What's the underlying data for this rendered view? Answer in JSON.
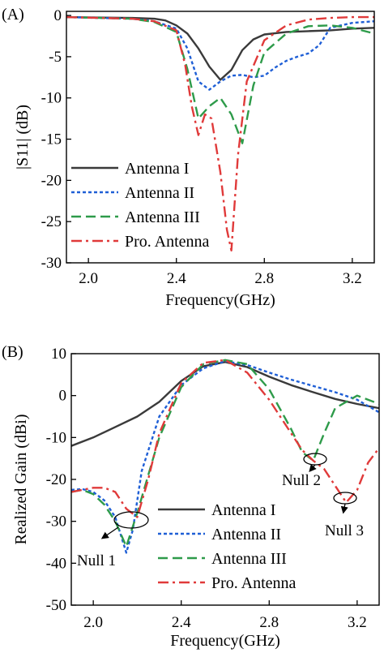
{
  "chart_data": [
    {
      "panel_label": "(A)",
      "type": "line",
      "xlabel": "Frequency(GHz)",
      "ylabel": "|S11| (dB)",
      "xlim": [
        1.9,
        3.3
      ],
      "ylim": [
        -30,
        0.5
      ],
      "xticks": [
        2.0,
        2.4,
        2.8,
        3.2
      ],
      "xtick_labels": [
        "2.0",
        "2.4",
        "2.8",
        "3.2"
      ],
      "yticks": [
        0,
        -5,
        -10,
        -15,
        -20,
        -25,
        -30
      ],
      "ytick_labels": [
        "0",
        "-5",
        "-10",
        "-15",
        "-20",
        "-25",
        "-30"
      ],
      "grid": false,
      "legend_position": "bottom-left",
      "series": [
        {
          "name": "Antenna I",
          "color": "#3a3a3a",
          "dash": "solid",
          "x": [
            1.9,
            2.2,
            2.3,
            2.35,
            2.4,
            2.45,
            2.5,
            2.55,
            2.6,
            2.65,
            2.7,
            2.75,
            2.8,
            2.9,
            3.0,
            3.1,
            3.2,
            3.3
          ],
          "y": [
            -0.2,
            -0.3,
            -0.4,
            -0.6,
            -1.2,
            -2.2,
            -4.0,
            -6.2,
            -7.8,
            -6.6,
            -4.2,
            -2.9,
            -2.3,
            -2.0,
            -1.9,
            -1.8,
            -1.6,
            -1.5
          ]
        },
        {
          "name": "Antenna II",
          "color": "#1f5fd6",
          "dash": "dotted",
          "x": [
            1.9,
            2.2,
            2.3,
            2.4,
            2.45,
            2.5,
            2.55,
            2.6,
            2.65,
            2.7,
            2.75,
            2.8,
            2.85,
            2.9,
            2.95,
            3.0,
            3.05,
            3.1,
            3.2,
            3.3
          ],
          "y": [
            -0.2,
            -0.4,
            -0.7,
            -1.6,
            -4.0,
            -8.0,
            -9.0,
            -8.0,
            -7.3,
            -7.2,
            -7.5,
            -7.3,
            -6.3,
            -5.5,
            -5.0,
            -4.6,
            -3.6,
            -1.5,
            -0.9,
            -0.7
          ]
        },
        {
          "name": "Antenna III",
          "color": "#2e9b4a",
          "dash": "dashed",
          "x": [
            1.9,
            2.2,
            2.3,
            2.4,
            2.45,
            2.5,
            2.55,
            2.6,
            2.65,
            2.7,
            2.75,
            2.8,
            2.9,
            3.0,
            3.1,
            3.2,
            3.3
          ],
          "y": [
            -0.2,
            -0.4,
            -0.8,
            -2.0,
            -6.5,
            -12.5,
            -11.0,
            -10.0,
            -12.0,
            -15.5,
            -8.5,
            -4.5,
            -2.2,
            -1.3,
            -1.2,
            -1.5,
            -2.2
          ]
        },
        {
          "name": "Pro. Antenna",
          "color": "#e03a3a",
          "dash": "dashdot",
          "x": [
            1.9,
            2.2,
            2.3,
            2.4,
            2.44,
            2.47,
            2.5,
            2.53,
            2.56,
            2.6,
            2.63,
            2.65,
            2.68,
            2.72,
            2.8,
            2.9,
            3.0,
            3.1,
            3.2,
            3.3
          ],
          "y": [
            -0.2,
            -0.4,
            -0.7,
            -1.8,
            -6.0,
            -11.0,
            -14.5,
            -12.0,
            -12.5,
            -19.0,
            -26.0,
            -28.5,
            -17.0,
            -8.0,
            -3.0,
            -1.2,
            -0.5,
            -0.3,
            -0.2,
            -0.2
          ]
        }
      ]
    },
    {
      "panel_label": "(B)",
      "type": "line",
      "xlabel": "Frequency(GHz)",
      "ylabel": "Realized Gain (dBi)",
      "xlim": [
        1.9,
        3.3
      ],
      "ylim": [
        -50,
        10
      ],
      "xticks": [
        2.0,
        2.4,
        2.8,
        3.2
      ],
      "xtick_labels": [
        "2.0",
        "2.4",
        "2.8",
        "3.2"
      ],
      "yticks": [
        10,
        0,
        -10,
        -20,
        -30,
        -40,
        -50
      ],
      "ytick_labels": [
        "10",
        "0",
        "-10",
        "-20",
        "-30",
        "-40",
        "-50"
      ],
      "grid": false,
      "legend_position": "bottom-right",
      "annotations": [
        "Null 1",
        "Null 2",
        "Null 3"
      ],
      "series": [
        {
          "name": "Antenna I",
          "color": "#3a3a3a",
          "dash": "solid",
          "x": [
            1.9,
            2.0,
            2.1,
            2.2,
            2.3,
            2.4,
            2.5,
            2.6,
            2.7,
            2.8,
            2.9,
            3.0,
            3.1,
            3.2,
            3.3
          ],
          "y": [
            -12.0,
            -10.0,
            -7.5,
            -5.0,
            -1.5,
            3.5,
            7.0,
            8.0,
            6.8,
            4.5,
            2.5,
            0.8,
            -0.8,
            -2.0,
            -3.0
          ]
        },
        {
          "name": "Antenna II",
          "color": "#1f5fd6",
          "dash": "dotted",
          "x": [
            1.9,
            1.95,
            2.0,
            2.05,
            2.1,
            2.15,
            2.18,
            2.22,
            2.3,
            2.4,
            2.5,
            2.6,
            2.7,
            2.8,
            2.9,
            3.0,
            3.1,
            3.2,
            3.3
          ],
          "y": [
            -22.5,
            -22.3,
            -23.0,
            -25.0,
            -29.0,
            -37.5,
            -32.0,
            -18.0,
            -5.0,
            2.5,
            6.5,
            8.2,
            7.3,
            5.5,
            3.8,
            2.3,
            0.8,
            -1.0,
            -4.0
          ]
        },
        {
          "name": "Antenna III",
          "color": "#2e9b4a",
          "dash": "dashed",
          "x": [
            1.9,
            1.95,
            2.0,
            2.05,
            2.1,
            2.15,
            2.2,
            2.3,
            2.4,
            2.5,
            2.6,
            2.7,
            2.8,
            2.9,
            2.95,
            3.0,
            3.05,
            3.1,
            3.2,
            3.3
          ],
          "y": [
            -23.0,
            -22.5,
            -23.5,
            -26.0,
            -30.0,
            -36.0,
            -28.0,
            -10.0,
            2.0,
            7.5,
            8.5,
            7.5,
            1.5,
            -8.0,
            -13.5,
            -15.5,
            -9.0,
            -3.0,
            0.0,
            -2.0
          ]
        },
        {
          "name": "Pro. Antenna",
          "color": "#e03a3a",
          "dash": "dashdot",
          "x": [
            1.9,
            2.0,
            2.05,
            2.1,
            2.15,
            2.2,
            2.25,
            2.3,
            2.4,
            2.5,
            2.6,
            2.7,
            2.8,
            2.9,
            2.95,
            3.0,
            3.05,
            3.1,
            3.15,
            3.2,
            3.25,
            3.3
          ],
          "y": [
            -23.0,
            -22.0,
            -22.0,
            -23.0,
            -27.0,
            -29.0,
            -20.0,
            -9.0,
            3.0,
            7.8,
            8.5,
            5.5,
            -1.0,
            -9.0,
            -13.0,
            -15.5,
            -17.5,
            -21.5,
            -25.5,
            -22.5,
            -16.0,
            -12.5
          ]
        }
      ]
    }
  ]
}
